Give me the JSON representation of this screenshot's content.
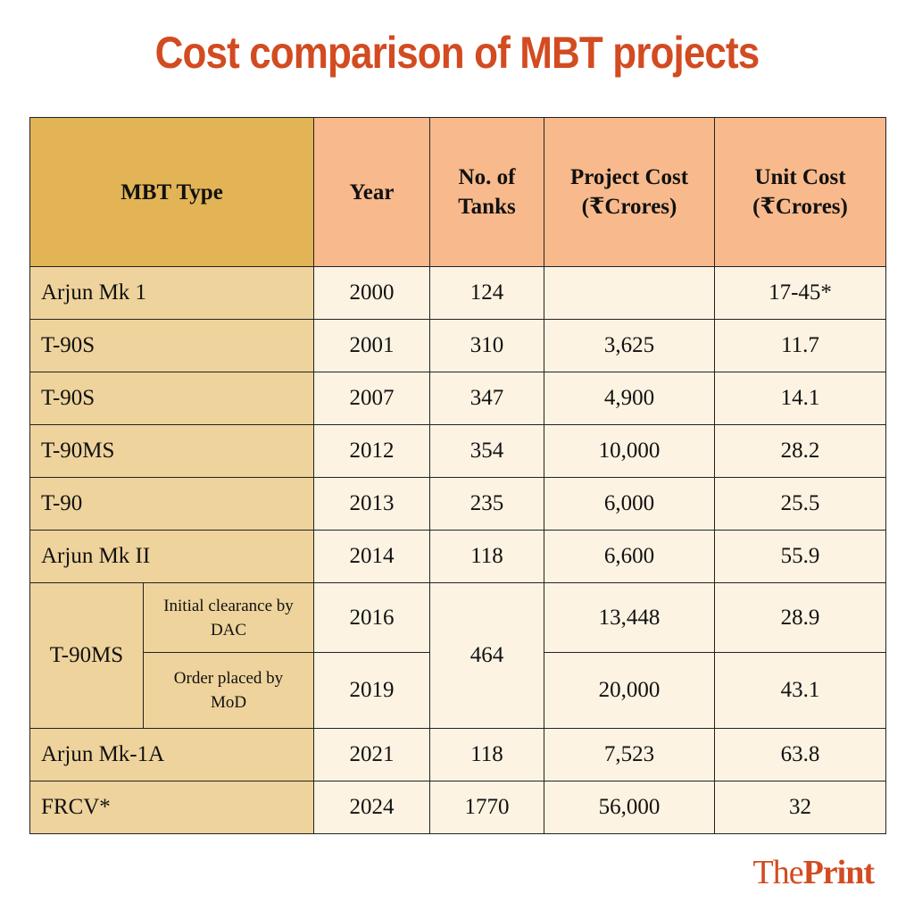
{
  "title": "Cost comparison of MBT projects",
  "headers": {
    "type": "MBT Type",
    "year": "Year",
    "tanks_1": "No. of",
    "tanks_2": "Tanks",
    "project_1": "Project Cost",
    "project_2": "(₹Crores)",
    "unit_1": "Unit Cost",
    "unit_2": "(₹Crores)"
  },
  "rows": [
    {
      "type": "Arjun Mk 1",
      "year": "2000",
      "tanks": "124",
      "project": "",
      "unit": "17-45*"
    },
    {
      "type": "T-90S",
      "year": "2001",
      "tanks": "310",
      "project": "3,625",
      "unit": "11.7"
    },
    {
      "type": "T-90S",
      "year": "2007",
      "tanks": "347",
      "project": "4,900",
      "unit": "14.1"
    },
    {
      "type": "T-90MS",
      "year": "2012",
      "tanks": "354",
      "project": "10,000",
      "unit": "28.2"
    },
    {
      "type": "T-90",
      "year": "2013",
      "tanks": "235",
      "project": "6,000",
      "unit": "25.5"
    },
    {
      "type": "Arjun Mk II",
      "year": "2014",
      "tanks": "118",
      "project": "6,600",
      "unit": "55.9"
    }
  ],
  "group": {
    "type": "T-90MS",
    "tanks": "464",
    "subs": [
      {
        "label_1": "Initial clearance by",
        "label_2": "DAC",
        "year": "2016",
        "project": "13,448",
        "unit": "28.9"
      },
      {
        "label_1": "Order placed by",
        "label_2": "MoD",
        "year": "2019",
        "project": "20,000",
        "unit": "43.1"
      }
    ]
  },
  "rows2": [
    {
      "type": "Arjun Mk-1A",
      "year": "2021",
      "tanks": "118",
      "project": "7,523",
      "unit": "63.8"
    },
    {
      "type": "FRCV*",
      "year": "2024",
      "tanks": "1770",
      "project": "56,000",
      "unit": "32"
    }
  ],
  "logo": {
    "part1": "The",
    "part2": "Print"
  },
  "colors": {
    "title": "#d24b21",
    "header_type": "#e2b456",
    "header": "#f8ba8c",
    "body_type": "#eed39c",
    "body": "#fcf3e2"
  }
}
